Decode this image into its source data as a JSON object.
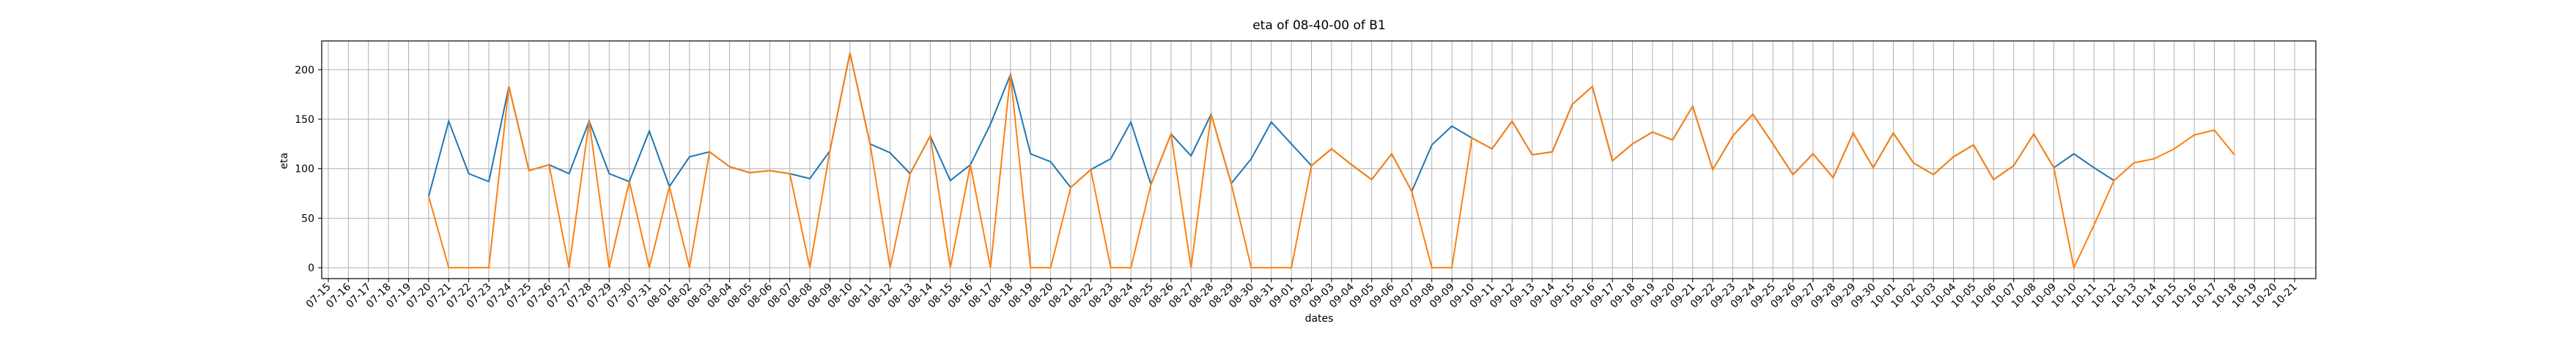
{
  "chart_data": {
    "type": "line",
    "title": "eta of 08-40-00 of B1",
    "x_label": "dates",
    "y_label": "eta",
    "categories": [
      "07-15",
      "07-16",
      "07-17",
      "07-18",
      "07-19",
      "07-20",
      "07-21",
      "07-22",
      "07-23",
      "07-24",
      "07-25",
      "07-26",
      "07-27",
      "07-28",
      "07-29",
      "07-30",
      "07-31",
      "08-01",
      "08-02",
      "08-03",
      "08-04",
      "08-05",
      "08-06",
      "08-07",
      "08-08",
      "08-09",
      "08-10",
      "08-11",
      "08-12",
      "08-13",
      "08-14",
      "08-15",
      "08-16",
      "08-17",
      "08-18",
      "08-19",
      "08-20",
      "08-21",
      "08-22",
      "08-23",
      "08-24",
      "08-25",
      "08-26",
      "08-27",
      "08-28",
      "08-29",
      "08-30",
      "08-31",
      "09-01",
      "09-02",
      "09-03",
      "09-04",
      "09-05",
      "09-06",
      "09-07",
      "09-08",
      "09-09",
      "09-10",
      "09-11",
      "09-12",
      "09-13",
      "09-14",
      "09-15",
      "09-16",
      "09-17",
      "09-18",
      "09-19",
      "09-20",
      "09-21",
      "09-22",
      "09-23",
      "09-24",
      "09-25",
      "09-26",
      "09-27",
      "09-28",
      "09-29",
      "09-30",
      "10-01",
      "10-02",
      "10-03",
      "10-04",
      "10-05",
      "10-06",
      "10-07",
      "10-08",
      "10-09",
      "10-10",
      "10-11",
      "10-12",
      "10-13",
      "10-14",
      "10-15",
      "10-16",
      "10-17",
      "10-18",
      "10-19",
      "10-20",
      "10-21"
    ],
    "series": [
      {
        "color": "#1f77b4",
        "values": [
          null,
          null,
          null,
          null,
          null,
          72,
          148,
          95,
          87,
          183,
          98,
          104,
          95,
          148,
          95,
          87,
          138,
          82,
          112,
          117,
          102,
          96,
          98,
          95,
          90,
          118,
          217,
          125,
          116,
          95,
          133,
          88,
          104,
          145,
          195,
          115,
          107,
          81,
          99,
          110,
          147,
          84,
          135,
          113,
          155,
          85,
          110,
          147,
          125,
          103,
          120,
          104,
          89,
          115,
          77,
          124,
          143,
          131,
          120,
          148,
          114,
          117,
          165,
          183,
          108,
          125,
          137,
          129,
          163,
          99,
          133,
          155,
          125,
          94,
          115,
          91,
          136,
          101,
          136,
          106,
          94,
          112,
          124,
          89,
          103,
          135,
          101,
          115,
          101,
          88,
          null,
          null,
          null,
          null,
          null,
          null,
          null,
          null,
          null
        ]
      },
      {
        "color": "#ff7f0e",
        "values": [
          null,
          null,
          null,
          null,
          null,
          72,
          0,
          0,
          0,
          183,
          98,
          104,
          0,
          148,
          0,
          87,
          0,
          82,
          0,
          117,
          102,
          96,
          98,
          95,
          0,
          118,
          217,
          125,
          0,
          95,
          133,
          0,
          104,
          0,
          195,
          0,
          0,
          81,
          99,
          0,
          0,
          84,
          135,
          0,
          155,
          85,
          0,
          0,
          0,
          103,
          120,
          104,
          89,
          115,
          77,
          0,
          0,
          131,
          120,
          148,
          114,
          117,
          165,
          183,
          108,
          125,
          137,
          129,
          163,
          99,
          133,
          155,
          125,
          94,
          115,
          91,
          136,
          101,
          136,
          106,
          94,
          112,
          124,
          89,
          103,
          135,
          101,
          0,
          43,
          88,
          106,
          110,
          120,
          134,
          139,
          114,
          null,
          null,
          null
        ]
      }
    ],
    "ylim": [
      -11,
      229
    ],
    "yticks": [
      0,
      50,
      100,
      150,
      200
    ],
    "grid": true
  }
}
